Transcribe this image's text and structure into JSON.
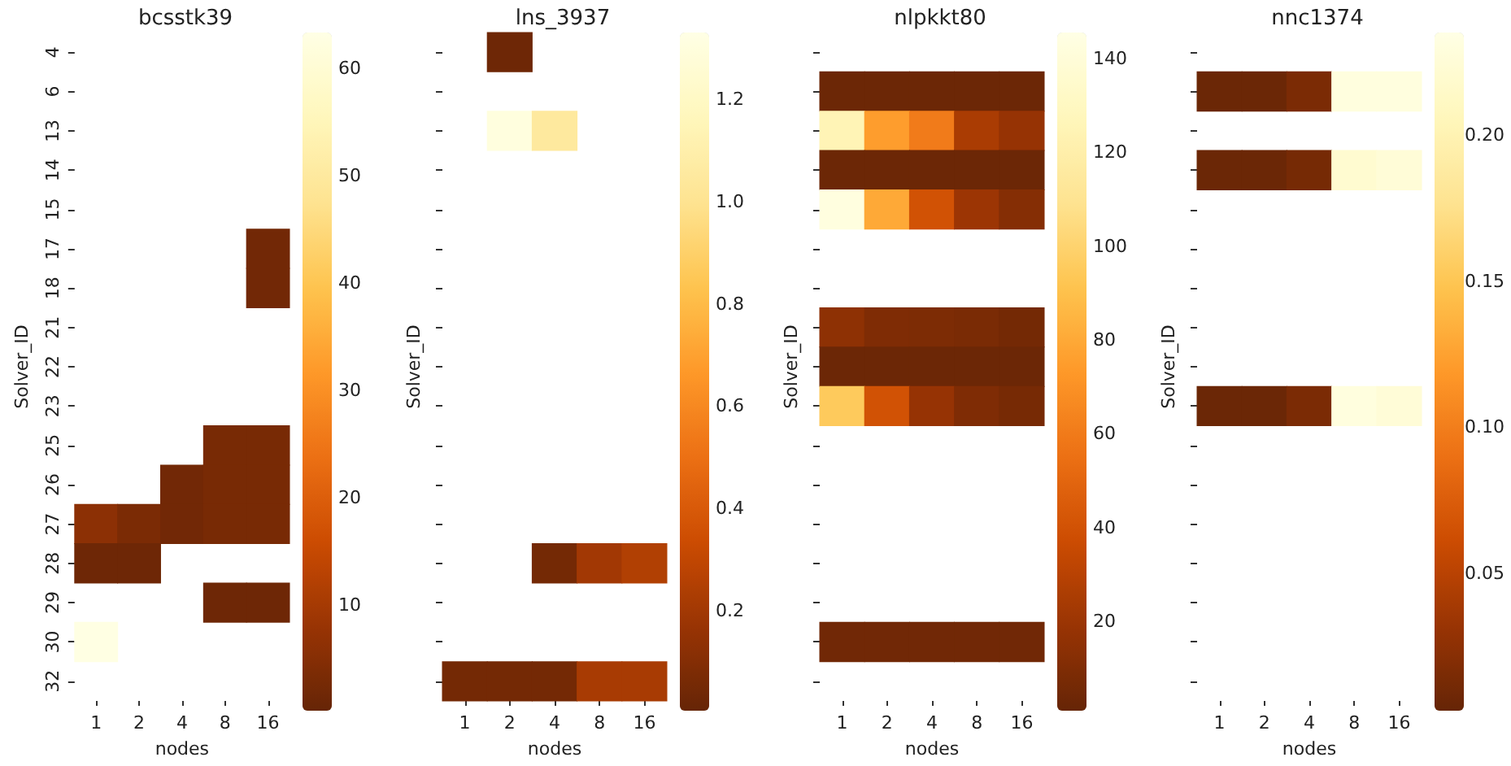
{
  "chart_data": [
    {
      "type": "heatmap",
      "title": "bcsstk39",
      "xlabel": "nodes",
      "ylabel": "Solver_ID",
      "categories": [
        "1",
        "2",
        "4",
        "8",
        "16"
      ],
      "y_categories": [
        "4",
        "6",
        "13",
        "14",
        "15",
        "17",
        "18",
        "21",
        "22",
        "23",
        "25",
        "26",
        "27",
        "28",
        "29",
        "30",
        "32"
      ],
      "cells": [
        [
          null,
          null,
          null,
          null,
          null
        ],
        [
          null,
          null,
          null,
          null,
          null
        ],
        [
          null,
          null,
          null,
          null,
          null
        ],
        [
          null,
          null,
          null,
          null,
          null
        ],
        [
          null,
          null,
          null,
          null,
          null
        ],
        [
          null,
          null,
          null,
          null,
          2
        ],
        [
          null,
          null,
          null,
          null,
          2
        ],
        [
          null,
          null,
          null,
          null,
          null
        ],
        [
          null,
          null,
          null,
          null,
          null
        ],
        [
          null,
          null,
          null,
          null,
          null
        ],
        [
          null,
          null,
          null,
          3,
          3
        ],
        [
          null,
          null,
          2,
          3,
          3
        ],
        [
          6,
          3.5,
          2,
          3,
          3
        ],
        [
          1.5,
          1.5,
          null,
          null,
          null
        ],
        [
          null,
          null,
          null,
          1.5,
          1.5
        ],
        [
          63,
          null,
          null,
          null,
          null
        ],
        [
          null,
          null,
          null,
          null,
          null
        ]
      ],
      "clim": [
        0.2,
        63.3
      ],
      "cticks": [
        10,
        20,
        30,
        40,
        50,
        60
      ]
    },
    {
      "type": "heatmap",
      "title": "lns_3937",
      "xlabel": "nodes",
      "ylabel": "Solver_ID",
      "tick_labels": "x",
      "categories": [
        "1",
        "2",
        "4",
        "8",
        "16"
      ],
      "y_categories": [
        "4",
        "6",
        "13",
        "14",
        "15",
        "17",
        "18",
        "21",
        "22",
        "23",
        "25",
        "26",
        "27",
        "28",
        "29",
        "30",
        "32"
      ],
      "cells": [
        [
          null,
          0.03,
          null,
          null,
          null
        ],
        [
          null,
          null,
          null,
          null,
          null
        ],
        [
          null,
          1.3,
          1.05,
          null,
          null
        ],
        [
          null,
          null,
          null,
          null,
          null
        ],
        [
          null,
          null,
          null,
          null,
          null
        ],
        [
          null,
          null,
          null,
          null,
          null
        ],
        [
          null,
          null,
          null,
          null,
          null
        ],
        [
          null,
          null,
          null,
          null,
          null
        ],
        [
          null,
          null,
          null,
          null,
          null
        ],
        [
          null,
          null,
          null,
          null,
          null
        ],
        [
          null,
          null,
          null,
          null,
          null
        ],
        [
          null,
          null,
          null,
          null,
          null
        ],
        [
          null,
          null,
          null,
          null,
          null
        ],
        [
          null,
          null,
          0.05,
          0.2,
          0.25
        ],
        [
          null,
          null,
          null,
          null,
          null
        ],
        [
          null,
          null,
          null,
          null,
          null
        ],
        [
          0.05,
          0.05,
          0.05,
          0.22,
          0.22
        ]
      ],
      "clim": [
        0.005,
        1.33
      ],
      "cticks": [
        0.2,
        0.4,
        0.6,
        0.8,
        {
          "value": 1,
          "label": "1.0"
        },
        1.2
      ]
    },
    {
      "type": "heatmap",
      "title": "nlpkkt80",
      "xlabel": "nodes",
      "ylabel": "Solver_ID",
      "tick_labels": "x",
      "categories": [
        "1",
        "2",
        "4",
        "8",
        "16"
      ],
      "y_categories": [
        "4",
        "6",
        "13",
        "14",
        "15",
        "17",
        "18",
        "21",
        "22",
        "23",
        "25",
        "26",
        "27",
        "28",
        "29",
        "30",
        "32"
      ],
      "cells": [
        [
          null,
          null,
          null,
          null,
          null
        ],
        [
          3,
          3,
          3,
          3,
          3
        ],
        [
          125,
          75,
          60,
          25,
          18
        ],
        [
          3,
          3,
          3,
          3,
          3
        ],
        [
          143,
          80,
          40,
          20,
          12
        ],
        [
          null,
          null,
          null,
          null,
          null
        ],
        [
          null,
          null,
          null,
          null,
          null
        ],
        [
          15,
          10,
          9,
          8,
          6
        ],
        [
          3,
          3,
          3,
          3,
          3
        ],
        [
          95,
          40,
          18,
          10,
          7
        ],
        [
          null,
          null,
          null,
          null,
          null
        ],
        [
          null,
          null,
          null,
          null,
          null
        ],
        [
          null,
          null,
          null,
          null,
          null
        ],
        [
          null,
          null,
          null,
          null,
          null
        ],
        [
          null,
          null,
          null,
          null,
          null
        ],
        [
          5,
          5,
          5,
          5,
          5
        ],
        [
          null,
          null,
          null,
          null,
          null
        ]
      ],
      "clim": [
        1,
        145.5
      ],
      "cticks": [
        20,
        40,
        60,
        80,
        100,
        120,
        140
      ]
    },
    {
      "type": "heatmap",
      "title": "nnc1374",
      "xlabel": "nodes",
      "ylabel": "Solver_ID",
      "tick_labels": "x",
      "categories": [
        "1",
        "2",
        "4",
        "8",
        "16"
      ],
      "y_categories": [
        "4",
        "6",
        "13",
        "14",
        "15",
        "17",
        "18",
        "21",
        "22",
        "23",
        "25",
        "26",
        "27",
        "28",
        "29",
        "30",
        "32"
      ],
      "cells": [
        [
          null,
          null,
          null,
          null,
          null
        ],
        [
          0.006,
          0.006,
          0.015,
          0.23,
          0.23
        ],
        [
          null,
          null,
          null,
          null,
          null
        ],
        [
          0.006,
          0.006,
          0.012,
          0.22,
          0.225
        ],
        [
          null,
          null,
          null,
          null,
          null
        ],
        [
          null,
          null,
          null,
          null,
          null
        ],
        [
          null,
          null,
          null,
          null,
          null
        ],
        [
          null,
          null,
          null,
          null,
          null
        ],
        [
          null,
          null,
          null,
          null,
          null
        ],
        [
          0.006,
          0.006,
          0.015,
          0.23,
          0.225
        ],
        [
          null,
          null,
          null,
          null,
          null
        ],
        [
          null,
          null,
          null,
          null,
          null
        ],
        [
          null,
          null,
          null,
          null,
          null
        ],
        [
          null,
          null,
          null,
          null,
          null
        ],
        [
          null,
          null,
          null,
          null,
          null
        ],
        [
          null,
          null,
          null,
          null,
          null
        ],
        [
          null,
          null,
          null,
          null,
          null
        ]
      ],
      "clim": [
        0.003,
        0.235
      ],
      "cticks": [
        0.05,
        {
          "value": 0.1,
          "label": "0.10"
        },
        0.15,
        {
          "value": 0.2,
          "label": "0.20"
        }
      ]
    }
  ]
}
